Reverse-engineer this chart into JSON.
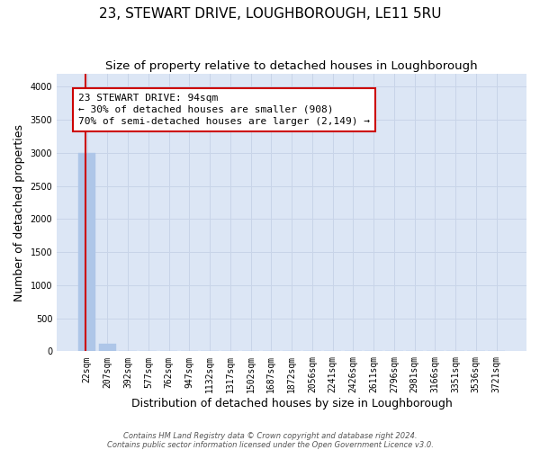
{
  "title": "23, STEWART DRIVE, LOUGHBOROUGH, LE11 5RU",
  "subtitle": "Size of property relative to detached houses in Loughborough",
  "xlabel": "Distribution of detached houses by size in Loughborough",
  "ylabel": "Number of detached properties",
  "footnote1": "Contains HM Land Registry data © Crown copyright and database right 2024.",
  "footnote2": "Contains public sector information licensed under the Open Government Licence v3.0.",
  "bin_labels": [
    "22sqm",
    "207sqm",
    "392sqm",
    "577sqm",
    "762sqm",
    "947sqm",
    "1132sqm",
    "1317sqm",
    "1502sqm",
    "1687sqm",
    "1872sqm",
    "2056sqm",
    "2241sqm",
    "2426sqm",
    "2611sqm",
    "2796sqm",
    "2981sqm",
    "3166sqm",
    "3351sqm",
    "3536sqm",
    "3721sqm"
  ],
  "bar_heights": [
    3000,
    110,
    0,
    0,
    0,
    0,
    0,
    0,
    0,
    0,
    0,
    0,
    0,
    0,
    0,
    0,
    0,
    0,
    0,
    0,
    0
  ],
  "bar_color": "#aec6e8",
  "grid_color": "#c8d4e8",
  "background_color": "#dce6f5",
  "annotation_line1": "23 STEWART DRIVE: 94sqm",
  "annotation_line2": "← 30% of detached houses are smaller (908)",
  "annotation_line3": "70% of semi-detached houses are larger (2,149) →",
  "annotation_box_edgecolor": "#cc0000",
  "subject_line_color": "#cc0000",
  "ylim": [
    0,
    4200
  ],
  "yticks": [
    0,
    500,
    1000,
    1500,
    2000,
    2500,
    3000,
    3500,
    4000
  ],
  "title_fontsize": 11,
  "subtitle_fontsize": 9.5,
  "xlabel_fontsize": 9,
  "ylabel_fontsize": 9,
  "tick_fontsize": 7,
  "annotation_fontsize": 8,
  "footnote_fontsize": 6
}
